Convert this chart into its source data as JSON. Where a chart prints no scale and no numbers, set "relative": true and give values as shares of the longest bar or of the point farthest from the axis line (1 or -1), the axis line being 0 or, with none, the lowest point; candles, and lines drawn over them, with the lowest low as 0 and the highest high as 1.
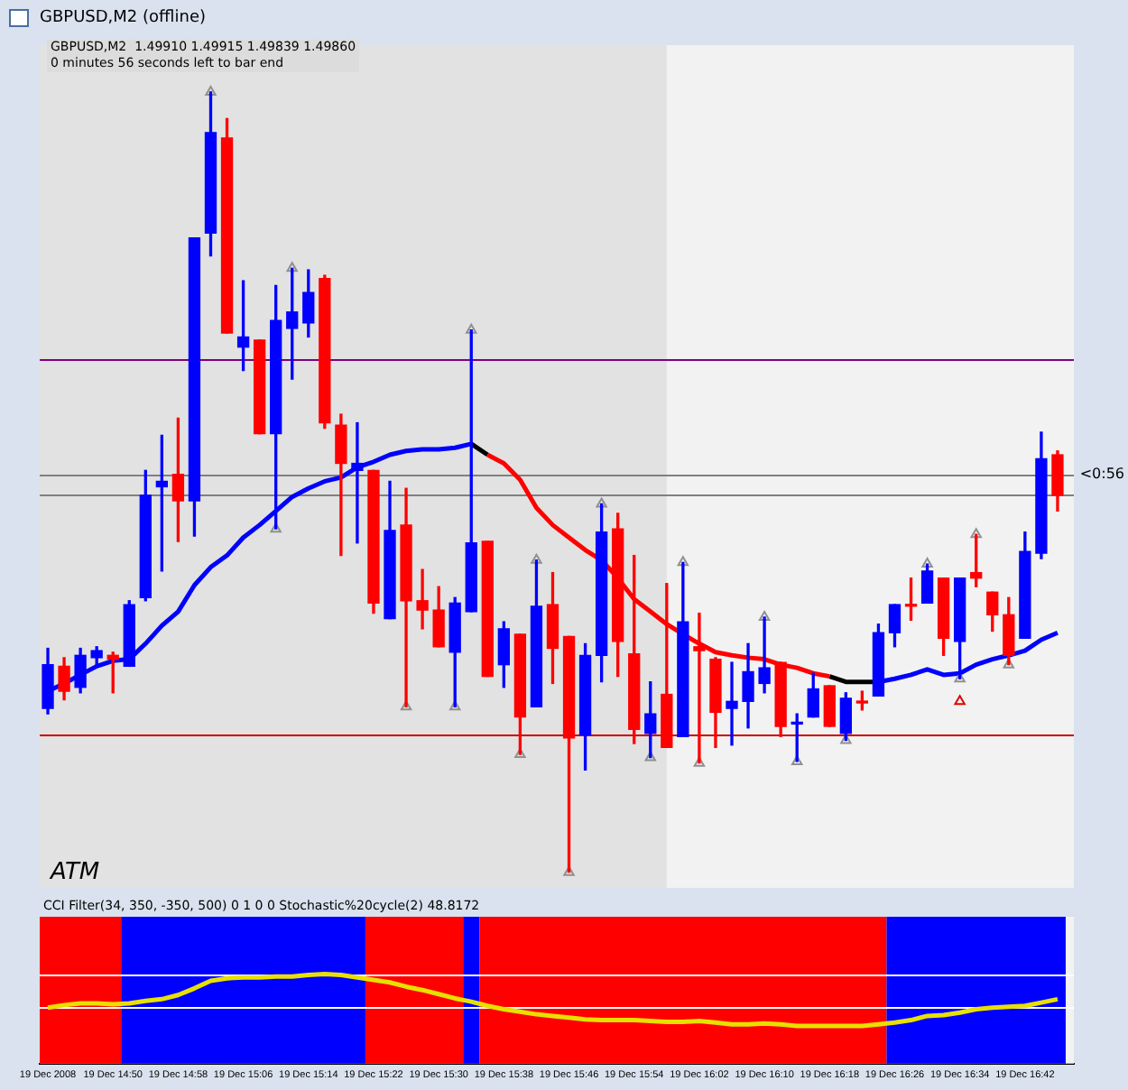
{
  "chart_data": [
    {
      "type": "candlestick",
      "title": "GBPUSD,M2 (offline)",
      "subtitle": "GBPUSD,M2  1.49910 1.49915 1.49839 1.49860",
      "annotations": [
        "0 minutes 56 seconds left to bar end",
        "ATM",
        "<0:56"
      ],
      "relative": true,
      "tick_labels": false,
      "xlim": [
        "2008-12-19T14:41",
        "2008-12-19T16:48"
      ],
      "x": [
        "2008-12-19T14:42",
        "2008-12-19T14:44",
        "2008-12-19T14:46",
        "2008-12-19T14:48",
        "2008-12-19T14:50",
        "2008-12-19T14:52",
        "2008-12-19T14:54",
        "2008-12-19T14:56",
        "2008-12-19T14:58",
        "2008-12-19T15:00",
        "2008-12-19T15:02",
        "2008-12-19T15:04",
        "2008-12-19T15:06",
        "2008-12-19T15:08",
        "2008-12-19T15:10",
        "2008-12-19T15:12",
        "2008-12-19T15:14",
        "2008-12-19T15:16",
        "2008-12-19T15:18",
        "2008-12-19T15:20",
        "2008-12-19T15:22",
        "2008-12-19T15:24",
        "2008-12-19T15:26",
        "2008-12-19T15:28",
        "2008-12-19T15:30",
        "2008-12-19T15:32",
        "2008-12-19T15:34",
        "2008-12-19T15:36",
        "2008-12-19T15:38",
        "2008-12-19T15:40",
        "2008-12-19T15:42",
        "2008-12-19T15:44",
        "2008-12-19T15:46",
        "2008-12-19T15:48",
        "2008-12-19T15:50",
        "2008-12-19T15:52",
        "2008-12-19T15:54",
        "2008-12-19T15:56",
        "2008-12-19T15:58",
        "2008-12-19T16:00",
        "2008-12-19T16:02",
        "2008-12-19T16:04",
        "2008-12-19T16:06",
        "2008-12-19T16:08",
        "2008-12-19T16:10",
        "2008-12-19T16:12",
        "2008-12-19T16:14",
        "2008-12-19T16:16",
        "2008-12-19T16:18",
        "2008-12-19T16:20",
        "2008-12-19T16:22",
        "2008-12-19T16:24",
        "2008-12-19T16:26",
        "2008-12-19T16:28",
        "2008-12-19T16:30",
        "2008-12-19T16:32",
        "2008-12-19T16:34",
        "2008-12-19T16:36",
        "2008-12-19T16:38",
        "2008-12-19T16:40",
        "2008-12-19T16:42",
        "2008-12-19T16:44",
        "2008-12-19T16:46"
      ],
      "ohlc": [
        [
          0.21,
          0.287,
          0.203,
          0.266
        ],
        [
          0.264,
          0.275,
          0.221,
          0.232
        ],
        [
          0.237,
          0.287,
          0.23,
          0.278
        ],
        [
          0.275,
          0.289,
          0.266,
          0.284
        ],
        [
          0.278,
          0.282,
          0.23,
          0.273
        ],
        [
          0.264,
          0.348,
          0.264,
          0.343
        ],
        [
          0.352,
          0.515,
          0.348,
          0.483
        ],
        [
          0.494,
          0.56,
          0.386,
          0.501
        ],
        [
          0.51,
          0.582,
          0.424,
          0.476
        ],
        [
          0.476,
          0.813,
          0.431,
          0.813
        ],
        [
          0.819,
          1,
          0.79,
          0.948
        ],
        [
          0.941,
          0.966,
          0.691,
          0.691
        ],
        [
          0.673,
          0.758,
          0.643,
          0.686
        ],
        [
          0.682,
          0.682,
          0.562,
          0.562
        ],
        [
          0.562,
          0.752,
          0.44,
          0.707
        ],
        [
          0.697,
          0.774,
          0.632,
          0.718
        ],
        [
          0.704,
          0.772,
          0.686,
          0.743
        ],
        [
          0.761,
          0.765,
          0.569,
          0.576
        ],
        [
          0.573,
          0.587,
          0.406,
          0.524
        ],
        [
          0.515,
          0.576,
          0.422,
          0.524
        ],
        [
          0.515,
          0.515,
          0.332,
          0.345
        ],
        [
          0.325,
          0.501,
          0.325,
          0.438
        ],
        [
          0.445,
          0.492,
          0.212,
          0.348
        ],
        [
          0.348,
          0.388,
          0.312,
          0.336
        ],
        [
          0.336,
          0.366,
          0.289,
          0.289
        ],
        [
          0.282,
          0.352,
          0.212,
          0.345
        ],
        [
          0.334,
          0.695,
          0.334,
          0.422
        ],
        [
          0.424,
          0.424,
          0.251,
          0.251
        ],
        [
          0.266,
          0.321,
          0.237,
          0.312
        ],
        [
          0.305,
          0.305,
          0.151,
          0.199
        ],
        [
          0.212,
          0.4,
          0.212,
          0.341
        ],
        [
          0.343,
          0.384,
          0.242,
          0.287
        ],
        [
          0.302,
          0.302,
          0,
          0.172
        ],
        [
          0.176,
          0.293,
          0.131,
          0.278
        ],
        [
          0.278,
          0.472,
          0.244,
          0.436
        ],
        [
          0.44,
          0.46,
          0.251,
          0.296
        ],
        [
          0.28,
          0.406,
          0.165,
          0.183
        ],
        [
          0.178,
          0.244,
          0.147,
          0.203
        ],
        [
          0.228,
          0.37,
          0.16,
          0.16
        ],
        [
          0.174,
          0.397,
          0.174,
          0.321
        ],
        [
          0.289,
          0.332,
          0.14,
          0.284
        ],
        [
          0.273,
          0.275,
          0.16,
          0.205
        ],
        [
          0.21,
          0.269,
          0.163,
          0.219
        ],
        [
          0.219,
          0.293,
          0.185,
          0.257
        ],
        [
          0.242,
          0.327,
          0.23,
          0.262
        ],
        [
          0.269,
          0.269,
          0.174,
          0.187
        ],
        [
          0.19,
          0.203,
          0.142,
          0.192
        ],
        [
          0.199,
          0.255,
          0.199,
          0.235
        ],
        [
          0.239,
          0.239,
          0.187,
          0.187
        ],
        [
          0.178,
          0.23,
          0.169,
          0.223
        ],
        [
          0.219,
          0.232,
          0.208,
          0.217
        ],
        [
          0.226,
          0.318,
          0.226,
          0.307
        ],
        [
          0.307,
          0.343,
          0.289,
          0.343
        ],
        [
          0.343,
          0.377,
          0.323,
          0.341
        ],
        [
          0.345,
          0.395,
          0.345,
          0.386
        ],
        [
          0.377,
          0.377,
          0.278,
          0.3
        ],
        [
          0.296,
          0.377,
          0.248,
          0.377
        ],
        [
          0.384,
          0.433,
          0.366,
          0.377
        ],
        [
          0.359,
          0.359,
          0.309,
          0.33
        ],
        [
          0.33,
          0.352,
          0.266,
          0.278
        ],
        [
          0.3,
          0.436,
          0.3,
          0.411
        ],
        [
          0.409,
          0.564,
          0.402,
          0.53
        ],
        [
          0.535,
          0.54,
          0.463,
          0.483
        ]
      ],
      "colors": [
        "#0000ff",
        "#ff0000",
        "#0000ff",
        "#0000ff",
        "#ff0000",
        "#0000ff",
        "#0000ff",
        "#0000ff",
        "#ff0000",
        "#0000ff",
        "#0000ff",
        "#ff0000",
        "#0000ff",
        "#ff0000",
        "#0000ff",
        "#0000ff",
        "#0000ff",
        "#ff0000",
        "#ff0000",
        "#0000ff",
        "#ff0000",
        "#0000ff",
        "#ff0000",
        "#ff0000",
        "#ff0000",
        "#0000ff",
        "#0000ff",
        "#ff0000",
        "#0000ff",
        "#ff0000",
        "#0000ff",
        "#ff0000",
        "#ff0000",
        "#0000ff",
        "#0000ff",
        "#ff0000",
        "#ff0000",
        "#0000ff",
        "#ff0000",
        "#0000ff",
        "#ff0000",
        "#ff0000",
        "#0000ff",
        "#0000ff",
        "#0000ff",
        "#ff0000",
        "#0000ff",
        "#0000ff",
        "#ff0000",
        "#0000ff",
        "#ff0000",
        "#0000ff",
        "#0000ff",
        "#ff0000",
        "#0000ff",
        "#ff0000",
        "#0000ff",
        "#ff0000",
        "#ff0000",
        "#ff0000",
        "#0000ff",
        "#0000ff",
        "#ff0000"
      ],
      "series": [
        {
          "type": "line",
          "color": "#0000ff",
          "values": [
            0.232,
            0.242,
            0.253,
            0.264,
            0.271,
            0.273,
            0.293,
            0.316,
            0.334,
            0.368,
            0.391,
            0.406,
            0.429,
            0.445,
            0.463,
            0.481,
            0.492,
            0.501,
            0.506,
            0.519,
            0.526,
            0.535,
            0.54,
            0.542,
            0.542,
            0.544,
            0.549,
            null,
            null,
            null,
            null,
            null,
            null,
            null,
            null,
            null,
            null,
            null,
            null,
            null,
            null,
            null,
            null,
            null,
            null,
            null,
            null,
            null,
            null,
            null,
            null,
            0.244,
            0.248,
            0.253,
            0.26,
            0.253,
            0.255,
            0.266,
            0.273,
            0.278,
            0.284,
            0.298,
            0.307
          ]
        },
        {
          "type": "line",
          "color": "#ff0000",
          "values": [
            null,
            null,
            null,
            null,
            null,
            null,
            null,
            null,
            null,
            null,
            null,
            null,
            null,
            null,
            null,
            null,
            null,
            null,
            null,
            null,
            null,
            null,
            null,
            null,
            null,
            null,
            null,
            0.535,
            0.524,
            0.503,
            0.467,
            0.445,
            0.429,
            0.413,
            0.4,
            0.377,
            0.35,
            0.334,
            0.318,
            0.305,
            0.293,
            0.282,
            0.278,
            0.275,
            0.273,
            0.266,
            0.262,
            0.255,
            0.251,
            null,
            null,
            null,
            null,
            null,
            null,
            null,
            null,
            null,
            null,
            null,
            null,
            null,
            null
          ]
        },
        {
          "type": "line",
          "color": "#000000",
          "values": [
            null,
            null,
            null,
            null,
            null,
            null,
            null,
            null,
            null,
            null,
            null,
            null,
            null,
            null,
            null,
            null,
            null,
            null,
            null,
            null,
            null,
            null,
            null,
            null,
            null,
            null,
            0.549,
            0.535,
            null,
            null,
            null,
            null,
            null,
            null,
            null,
            null,
            null,
            null,
            null,
            null,
            null,
            null,
            null,
            null,
            null,
            null,
            null,
            null,
            0.251,
            0.244,
            0.244,
            0.244,
            null,
            null,
            null,
            null,
            null,
            null,
            null,
            null,
            null,
            null,
            null
          ]
        },
        {
          "type": "scatter",
          "color": "#909090",
          "marker": "triangle",
          "x": [
            "2008-12-19T15:02",
            "2008-12-19T15:12",
            "2008-12-19T15:34",
            "2008-12-19T15:42",
            "2008-12-19T15:50",
            "2008-12-19T16:00",
            "2008-12-19T16:10",
            "2008-12-19T16:30",
            "2008-12-19T16:36"
          ],
          "values": [
            1,
            0.774,
            0.695,
            0.4,
            0.472,
            0.397,
            0.327,
            0.395,
            0.433
          ]
        },
        {
          "type": "scatter",
          "color": "#909090",
          "marker": "triangle",
          "x": [
            "2008-12-19T15:10",
            "2008-12-19T15:26",
            "2008-12-19T15:32",
            "2008-12-19T15:40",
            "2008-12-19T15:46",
            "2008-12-19T15:56",
            "2008-12-19T16:02",
            "2008-12-19T16:14",
            "2008-12-19T16:20",
            "2008-12-19T16:34",
            "2008-12-19T16:40"
          ],
          "values": [
            0.44,
            0.212,
            0.212,
            0.151,
            0,
            0.147,
            0.14,
            0.142,
            0.169,
            0.248,
            0.266
          ]
        },
        {
          "type": "scatter",
          "color": "#e00000",
          "marker": "triangle",
          "x": [
            "2008-12-19T16:34"
          ],
          "values": [
            0.219
          ]
        }
      ],
      "ref_lines": [
        {
          "axis": "y",
          "value": 0.657,
          "color": "#800080"
        },
        {
          "axis": "y",
          "value": 0.51,
          "color": "#808080"
        },
        {
          "axis": "y",
          "value": 0.483,
          "color": "#808080"
        },
        {
          "axis": "y",
          "value": 0.176,
          "color": "#cc0000"
        }
      ],
      "bands": [
        {
          "axis": "x",
          "from": "2008-12-19T14:41",
          "to": "2008-12-19T15:58",
          "color": "#e2e2e2"
        }
      ]
    },
    {
      "type": "line",
      "title": "CCI Filter(34, 350, -350, 500) 0 1 0 0  Stochastic%20cycle(2) 48.8172",
      "relative": true,
      "tick_labels": "x",
      "xlim": [
        "2008-12-19T14:41",
        "2008-12-19T16:48"
      ],
      "x": [
        "2008-12-19T14:42",
        "2008-12-19T14:44",
        "2008-12-19T14:46",
        "2008-12-19T14:48",
        "2008-12-19T14:50",
        "2008-12-19T14:52",
        "2008-12-19T14:54",
        "2008-12-19T14:56",
        "2008-12-19T14:58",
        "2008-12-19T15:00",
        "2008-12-19T15:02",
        "2008-12-19T15:04",
        "2008-12-19T15:06",
        "2008-12-19T15:08",
        "2008-12-19T15:10",
        "2008-12-19T15:12",
        "2008-12-19T15:14",
        "2008-12-19T15:16",
        "2008-12-19T15:18",
        "2008-12-19T15:20",
        "2008-12-19T15:22",
        "2008-12-19T15:24",
        "2008-12-19T15:26",
        "2008-12-19T15:28",
        "2008-12-19T15:30",
        "2008-12-19T15:32",
        "2008-12-19T15:34",
        "2008-12-19T15:36",
        "2008-12-19T15:38",
        "2008-12-19T15:40",
        "2008-12-19T15:42",
        "2008-12-19T15:44",
        "2008-12-19T15:46",
        "2008-12-19T15:48",
        "2008-12-19T15:50",
        "2008-12-19T15:52",
        "2008-12-19T15:54",
        "2008-12-19T15:56",
        "2008-12-19T15:58",
        "2008-12-19T16:00",
        "2008-12-19T16:02",
        "2008-12-19T16:04",
        "2008-12-19T16:06",
        "2008-12-19T16:08",
        "2008-12-19T16:10",
        "2008-12-19T16:12",
        "2008-12-19T16:14",
        "2008-12-19T16:16",
        "2008-12-19T16:18",
        "2008-12-19T16:20",
        "2008-12-19T16:22",
        "2008-12-19T16:24",
        "2008-12-19T16:26",
        "2008-12-19T16:28",
        "2008-12-19T16:30",
        "2008-12-19T16:32",
        "2008-12-19T16:34",
        "2008-12-19T16:36",
        "2008-12-19T16:38",
        "2008-12-19T16:40",
        "2008-12-19T16:42",
        "2008-12-19T16:44",
        "2008-12-19T16:46"
      ],
      "xticks": [
        {
          "value": "2008-12-19T14:42",
          "label": "19 Dec 2008"
        },
        {
          "value": "2008-12-19T14:50",
          "label": "19 Dec 14:50"
        },
        {
          "value": "2008-12-19T14:58",
          "label": "19 Dec 14:58"
        },
        {
          "value": "2008-12-19T15:06",
          "label": "19 Dec 15:06"
        },
        {
          "value": "2008-12-19T15:14",
          "label": "19 Dec 15:14"
        },
        {
          "value": "2008-12-19T15:22",
          "label": "19 Dec 15:22"
        },
        {
          "value": "2008-12-19T15:30",
          "label": "19 Dec 15:30"
        },
        {
          "value": "2008-12-19T15:38",
          "label": "19 Dec 15:38"
        },
        {
          "value": "2008-12-19T15:46",
          "label": "19 Dec 15:46"
        },
        {
          "value": "2008-12-19T15:54",
          "label": "19 Dec 15:54"
        },
        {
          "value": "2008-12-19T16:02",
          "label": "19 Dec 16:02"
        },
        {
          "value": "2008-12-19T16:10",
          "label": "19 Dec 16:10"
        },
        {
          "value": "2008-12-19T16:18",
          "label": "19 Dec 16:18"
        },
        {
          "value": "2008-12-19T16:26",
          "label": "19 Dec 16:26"
        },
        {
          "value": "2008-12-19T16:34",
          "label": "19 Dec 16:34"
        },
        {
          "value": "2008-12-19T16:42",
          "label": "19 Dec 16:42"
        }
      ],
      "series": [
        {
          "color": "#e8e000",
          "values": [
            0.626,
            0.654,
            0.673,
            0.673,
            0.664,
            0.673,
            0.701,
            0.72,
            0.766,
            0.841,
            0.925,
            0.953,
            0.963,
            0.963,
            0.972,
            0.972,
            0.991,
            1,
            0.991,
            0.963,
            0.935,
            0.907,
            0.86,
            0.822,
            0.776,
            0.729,
            0.692,
            0.645,
            0.607,
            0.579,
            0.551,
            0.533,
            0.514,
            0.495,
            0.486,
            0.486,
            0.486,
            0.477,
            0.467,
            0.467,
            0.477,
            0.458,
            0.439,
            0.439,
            0.449,
            0.439,
            0.421,
            0.421,
            0.421,
            0.421,
            0.421,
            0.439,
            0.458,
            0.486,
            0.533,
            0.542,
            0.57,
            0.607,
            0.626,
            0.636,
            0.645,
            0.682,
            0.72
          ]
        }
      ],
      "ref_lines": [
        {
          "axis": "y",
          "value": 1,
          "color": "#ffffff"
        },
        {
          "axis": "y",
          "value": 0.626,
          "color": "#ffffff"
        }
      ],
      "bands": [
        {
          "axis": "x",
          "from": "2008-12-19T14:41",
          "to": "2008-12-19T14:51",
          "color": "#ff0000"
        },
        {
          "axis": "x",
          "from": "2008-12-19T14:51",
          "to": "2008-12-19T15:21",
          "color": "#0000ff"
        },
        {
          "axis": "x",
          "from": "2008-12-19T15:21",
          "to": "2008-12-19T15:33",
          "color": "#ff0000"
        },
        {
          "axis": "x",
          "from": "2008-12-19T15:33",
          "to": "2008-12-19T15:35",
          "color": "#0000ff"
        },
        {
          "axis": "x",
          "from": "2008-12-19T15:35",
          "to": "2008-12-19T16:25",
          "color": "#ff0000"
        },
        {
          "axis": "x",
          "from": "2008-12-19T16:25",
          "to": "2008-12-19T16:47",
          "color": "#0000ff"
        }
      ]
    }
  ]
}
